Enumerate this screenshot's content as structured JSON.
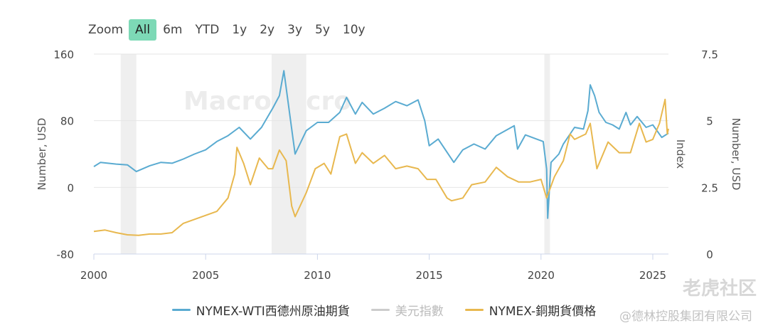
{
  "zoom": {
    "label": "Zoom",
    "buttons": [
      "All",
      "6m",
      "YTD",
      "1y",
      "2y",
      "3y",
      "5y",
      "10y"
    ],
    "selected": "All"
  },
  "watermark": "MacroMicro",
  "footer_watermark": "老虎社区",
  "footer_company": "@德林控股集团有限公司",
  "chart_data": {
    "type": "line",
    "x_ticks": [
      2000,
      2005,
      2010,
      2015,
      2020,
      2025
    ],
    "x_range": [
      2000,
      2025.7
    ],
    "left_axis": {
      "label": "Number, USD",
      "ticks": [
        "160",
        "80",
        "0",
        "-80"
      ],
      "range": [
        -80,
        160
      ]
    },
    "index_axis": {
      "label": "Index",
      "visible": false
    },
    "right_axis": {
      "label": "Number, USD",
      "ticks": [
        "7.5",
        "5",
        "2.5",
        "0"
      ],
      "range": [
        0,
        7.5
      ]
    },
    "recessions": [
      [
        2001.2,
        2001.9
      ],
      [
        2007.95,
        2009.5
      ],
      [
        2020.15,
        2020.4
      ]
    ],
    "grid": true,
    "series": [
      {
        "name": "NYMEX-WTI西德州原油期貨",
        "color": "#5aabd1",
        "axis": "left",
        "visible": true,
        "points": [
          [
            2000,
            25
          ],
          [
            2000.3,
            30
          ],
          [
            2001,
            28
          ],
          [
            2001.5,
            27
          ],
          [
            2001.9,
            19
          ],
          [
            2002.5,
            26
          ],
          [
            2003,
            30
          ],
          [
            2003.5,
            29
          ],
          [
            2004,
            34
          ],
          [
            2004.5,
            40
          ],
          [
            2005,
            45
          ],
          [
            2005.5,
            55
          ],
          [
            2006,
            62
          ],
          [
            2006.5,
            72
          ],
          [
            2007,
            58
          ],
          [
            2007.5,
            72
          ],
          [
            2008,
            95
          ],
          [
            2008.3,
            110
          ],
          [
            2008.5,
            140
          ],
          [
            2008.7,
            100
          ],
          [
            2008.9,
            60
          ],
          [
            2009,
            40
          ],
          [
            2009.5,
            68
          ],
          [
            2010,
            78
          ],
          [
            2010.5,
            78
          ],
          [
            2011,
            90
          ],
          [
            2011.3,
            108
          ],
          [
            2011.7,
            88
          ],
          [
            2012,
            102
          ],
          [
            2012.5,
            88
          ],
          [
            2013,
            95
          ],
          [
            2013.5,
            103
          ],
          [
            2014,
            98
          ],
          [
            2014.5,
            105
          ],
          [
            2014.8,
            80
          ],
          [
            2015,
            50
          ],
          [
            2015.4,
            58
          ],
          [
            2015.9,
            38
          ],
          [
            2016.1,
            30
          ],
          [
            2016.5,
            45
          ],
          [
            2017,
            52
          ],
          [
            2017.5,
            46
          ],
          [
            2018,
            62
          ],
          [
            2018.8,
            74
          ],
          [
            2018.95,
            46
          ],
          [
            2019.3,
            63
          ],
          [
            2019.8,
            58
          ],
          [
            2020.1,
            55
          ],
          [
            2020.25,
            22
          ],
          [
            2020.3,
            -37
          ],
          [
            2020.45,
            30
          ],
          [
            2020.8,
            40
          ],
          [
            2021,
            52
          ],
          [
            2021.5,
            72
          ],
          [
            2021.9,
            70
          ],
          [
            2022.1,
            92
          ],
          [
            2022.2,
            123
          ],
          [
            2022.4,
            110
          ],
          [
            2022.6,
            90
          ],
          [
            2022.9,
            78
          ],
          [
            2023.2,
            75
          ],
          [
            2023.5,
            70
          ],
          [
            2023.8,
            90
          ],
          [
            2024,
            75
          ],
          [
            2024.3,
            85
          ],
          [
            2024.7,
            72
          ],
          [
            2025,
            75
          ],
          [
            2025.4,
            60
          ],
          [
            2025.7,
            65
          ]
        ]
      },
      {
        "name": "美元指數",
        "color": "#cccccc",
        "axis": "index",
        "visible": false,
        "points": []
      },
      {
        "name": "NYMEX-銅期貨價格",
        "color": "#e8b84f",
        "axis": "right",
        "visible": true,
        "points": [
          [
            2000,
            0.85
          ],
          [
            2000.5,
            0.9
          ],
          [
            2001,
            0.8
          ],
          [
            2001.5,
            0.72
          ],
          [
            2002,
            0.7
          ],
          [
            2002.5,
            0.75
          ],
          [
            2003,
            0.75
          ],
          [
            2003.5,
            0.8
          ],
          [
            2004,
            1.15
          ],
          [
            2004.5,
            1.3
          ],
          [
            2005,
            1.45
          ],
          [
            2005.5,
            1.6
          ],
          [
            2006,
            2.1
          ],
          [
            2006.3,
            3.0
          ],
          [
            2006.4,
            4.0
          ],
          [
            2006.7,
            3.4
          ],
          [
            2007,
            2.6
          ],
          [
            2007.4,
            3.6
          ],
          [
            2007.8,
            3.2
          ],
          [
            2008,
            3.2
          ],
          [
            2008.3,
            3.9
          ],
          [
            2008.6,
            3.5
          ],
          [
            2008.85,
            1.8
          ],
          [
            2009,
            1.4
          ],
          [
            2009.5,
            2.3
          ],
          [
            2009.9,
            3.2
          ],
          [
            2010.3,
            3.4
          ],
          [
            2010.6,
            3.0
          ],
          [
            2011,
            4.4
          ],
          [
            2011.3,
            4.5
          ],
          [
            2011.7,
            3.4
          ],
          [
            2012,
            3.8
          ],
          [
            2012.5,
            3.4
          ],
          [
            2013,
            3.7
          ],
          [
            2013.5,
            3.2
          ],
          [
            2014,
            3.3
          ],
          [
            2014.5,
            3.2
          ],
          [
            2014.9,
            2.8
          ],
          [
            2015.3,
            2.8
          ],
          [
            2015.8,
            2.1
          ],
          [
            2016,
            2.0
          ],
          [
            2016.5,
            2.1
          ],
          [
            2016.9,
            2.6
          ],
          [
            2017.5,
            2.7
          ],
          [
            2018,
            3.25
          ],
          [
            2018.5,
            2.9
          ],
          [
            2019,
            2.7
          ],
          [
            2019.5,
            2.7
          ],
          [
            2020,
            2.8
          ],
          [
            2020.25,
            2.1
          ],
          [
            2020.6,
            2.9
          ],
          [
            2021,
            3.5
          ],
          [
            2021.3,
            4.5
          ],
          [
            2021.5,
            4.3
          ],
          [
            2022,
            4.5
          ],
          [
            2022.2,
            4.9
          ],
          [
            2022.5,
            3.2
          ],
          [
            2023,
            4.2
          ],
          [
            2023.5,
            3.8
          ],
          [
            2024,
            3.8
          ],
          [
            2024.4,
            4.9
          ],
          [
            2024.7,
            4.2
          ],
          [
            2025,
            4.3
          ],
          [
            2025.3,
            4.9
          ],
          [
            2025.55,
            5.8
          ],
          [
            2025.65,
            4.5
          ],
          [
            2025.7,
            4.7
          ]
        ]
      }
    ]
  }
}
